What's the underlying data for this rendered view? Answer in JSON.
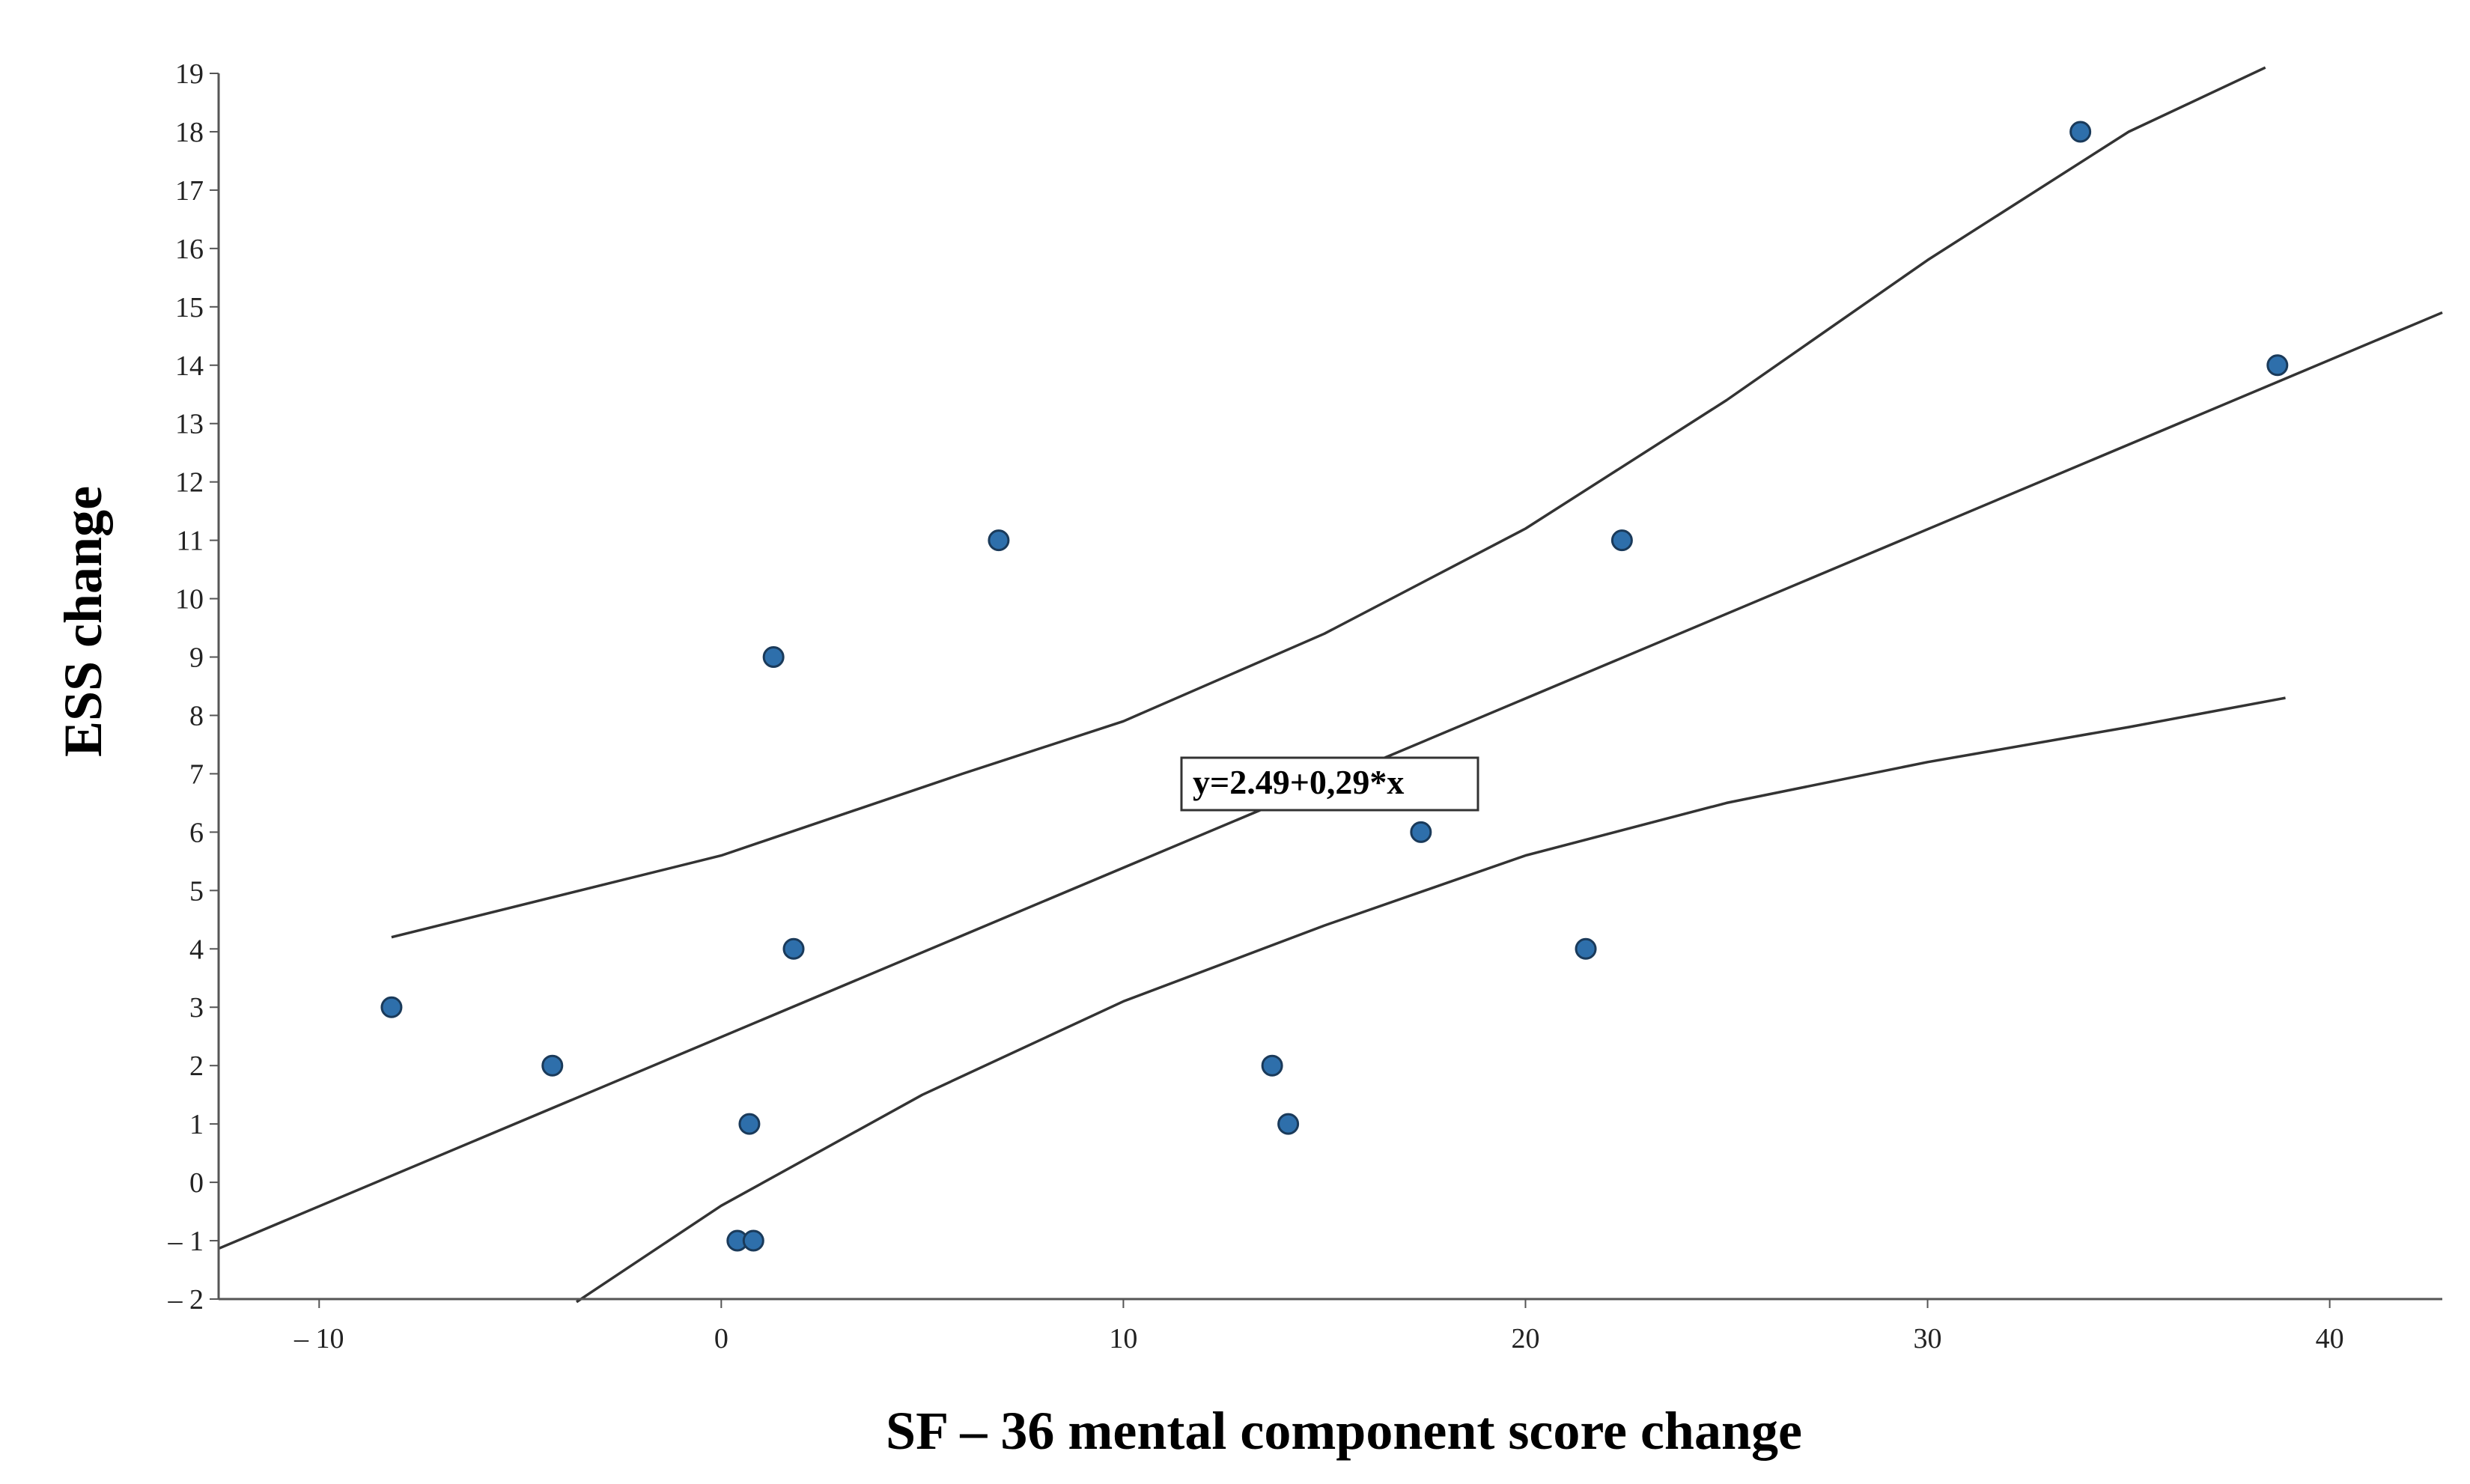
{
  "chart_data": {
    "type": "scatter",
    "title": "",
    "xlabel": "SF – 36 mental component score change",
    "ylabel": "ESS change",
    "xlim": [
      -12.5,
      42.8
    ],
    "ylim": [
      -2,
      19
    ],
    "x_ticks": [
      -10,
      0,
      10,
      20,
      30,
      40
    ],
    "x_tick_labels": [
      "– 10",
      "0",
      "10",
      "20",
      "30",
      "40"
    ],
    "y_ticks": [
      -2,
      -1,
      0,
      1,
      2,
      3,
      4,
      5,
      6,
      7,
      8,
      9,
      10,
      11,
      12,
      13,
      14,
      15,
      16,
      17,
      18,
      19
    ],
    "y_tick_labels": [
      "– 2",
      "– 1",
      "0",
      "1",
      "2",
      "3",
      "4",
      "5",
      "6",
      "7",
      "8",
      "9",
      "10",
      "11",
      "12",
      "13",
      "14",
      "15",
      "16",
      "17",
      "18",
      "19"
    ],
    "grid": false,
    "points": [
      {
        "x": -8.2,
        "y": 3
      },
      {
        "x": -4.2,
        "y": 2
      },
      {
        "x": 0.4,
        "y": -1
      },
      {
        "x": 0.8,
        "y": -1
      },
      {
        "x": 0.7,
        "y": 1
      },
      {
        "x": 1.3,
        "y": 9
      },
      {
        "x": 1.8,
        "y": 4
      },
      {
        "x": 6.9,
        "y": 11
      },
      {
        "x": 13.7,
        "y": 2
      },
      {
        "x": 14.1,
        "y": 1
      },
      {
        "x": 17.4,
        "y": 6
      },
      {
        "x": 21.5,
        "y": 4
      },
      {
        "x": 22.4,
        "y": 11
      },
      {
        "x": 33.8,
        "y": 18
      },
      {
        "x": 38.7,
        "y": 14
      }
    ],
    "fit": {
      "intercept": 2.49,
      "slope": 0.29,
      "x_range": [
        -12.5,
        42.8
      ]
    },
    "confidence_band": {
      "upper": [
        [
          -8.2,
          4.2
        ],
        [
          0,
          5.6
        ],
        [
          6,
          7.0
        ],
        [
          10,
          7.9
        ],
        [
          15,
          9.4
        ],
        [
          20,
          11.2
        ],
        [
          25,
          13.4
        ],
        [
          30,
          15.8
        ],
        [
          35,
          18.0
        ],
        [
          38.4,
          19.1
        ]
      ],
      "lower": [
        [
          -3.6,
          -2.05
        ],
        [
          0,
          -0.4
        ],
        [
          5,
          1.5
        ],
        [
          10,
          3.1
        ],
        [
          15,
          4.4
        ],
        [
          20,
          5.6
        ],
        [
          25,
          6.5
        ],
        [
          30,
          7.2
        ],
        [
          35,
          7.8
        ],
        [
          38.9,
          8.3
        ]
      ]
    },
    "equation_label": "y=2.49+0,29*x",
    "colors": {
      "point_fill": "#2e6fab",
      "point_stroke": "#1a3a5a",
      "line": "#333333",
      "axis": "#555555"
    }
  }
}
